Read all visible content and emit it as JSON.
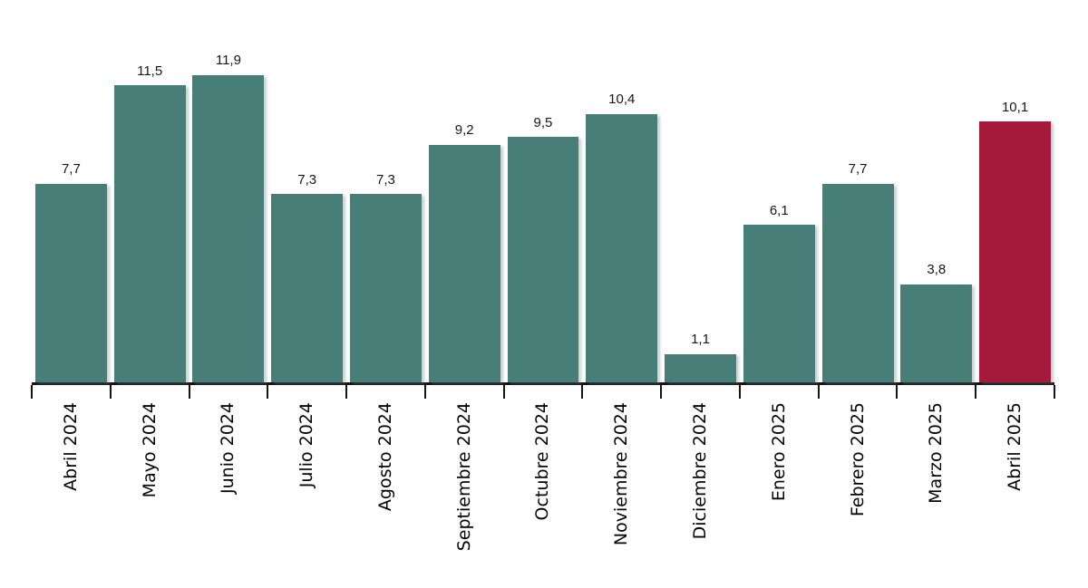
{
  "chart_data": {
    "type": "bar",
    "title": "",
    "xlabel": "",
    "ylabel": "",
    "categories": [
      "Abril 2024",
      "Mayo 2024",
      "Junio 2024",
      "Julio 2024",
      "Agosto 2024",
      "Septiembre 2024",
      "Octubre 2024",
      "Noviembre 2024",
      "Diciembre 2024",
      "Enero 2025",
      "Febrero 2025",
      "Marzo 2025",
      "Abril 2025"
    ],
    "values": [
      7.7,
      11.5,
      11.9,
      7.3,
      7.3,
      9.2,
      9.5,
      10.4,
      1.1,
      6.1,
      7.7,
      3.8,
      10.1
    ],
    "value_labels": [
      "7,7",
      "11,5",
      "11,9",
      "7,3",
      "7,3",
      "9,2",
      "9,5",
      "10,4",
      "1,1",
      "6,1",
      "7,7",
      "3,8",
      "10,1"
    ],
    "highlight_index": 12,
    "ylim": [
      0,
      12.5
    ],
    "grid": false,
    "legend": null,
    "colors": {
      "bar": "#477f78",
      "highlight_bar": "#a5193a",
      "axis": "#141414",
      "value_label": "#16161f",
      "category_label": "#050505",
      "background": "#ffffff"
    }
  }
}
